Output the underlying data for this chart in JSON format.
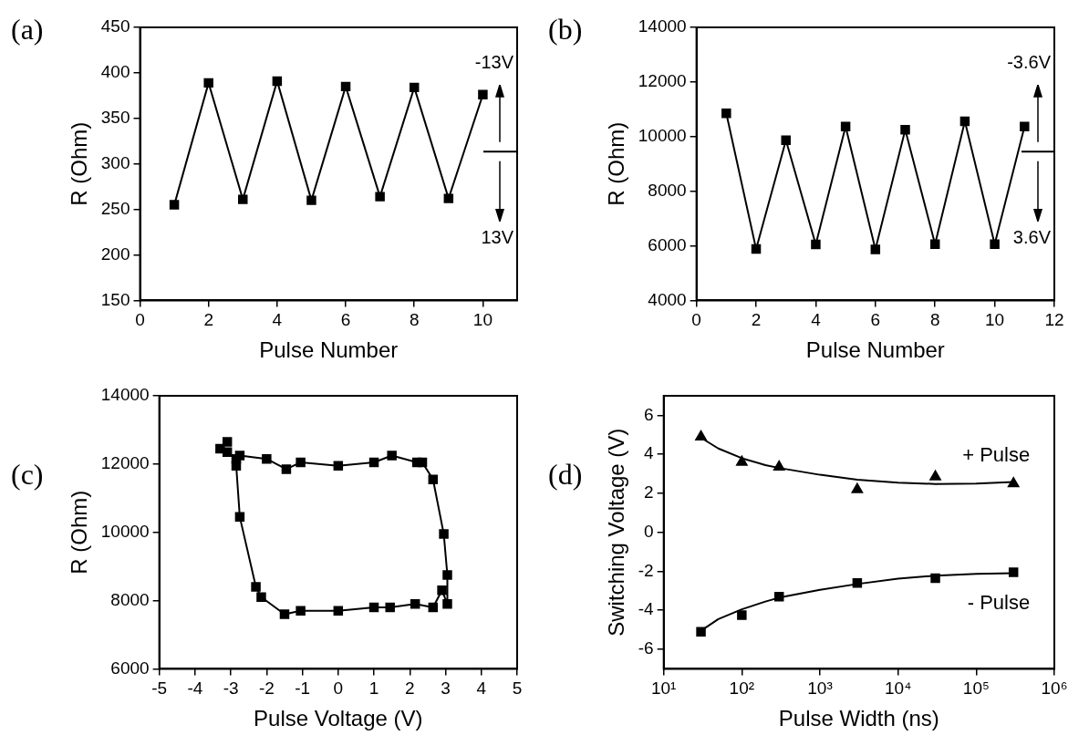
{
  "chart_data": [
    {
      "type": "line",
      "title": "(a)",
      "xlabel": "Pulse Number",
      "ylabel": "R (Ohm)",
      "x": [
        1,
        2,
        3,
        4,
        5,
        6,
        7,
        8,
        9,
        10
      ],
      "marker": "square",
      "series": [
        {
          "color": "#000000",
          "values": [
            255,
            389,
            261,
            391,
            260,
            385,
            264,
            384,
            262,
            376
          ]
        }
      ],
      "xlim": [
        0,
        11
      ],
      "xticks": [
        0,
        2,
        4,
        6,
        8,
        10
      ],
      "ylim": [
        150,
        450
      ],
      "yticks": [
        150,
        200,
        250,
        300,
        350,
        400,
        450
      ],
      "annotations": [
        "-13V",
        "13V"
      ]
    },
    {
      "type": "line",
      "title": "(b)",
      "xlabel": "Pulse Number",
      "ylabel": "R (Ohm)",
      "x": [
        1,
        2,
        3,
        4,
        5,
        6,
        7,
        8,
        9,
        10,
        11
      ],
      "marker": "square",
      "series": [
        {
          "color": "#000000",
          "values": [
            10850,
            5880,
            9870,
            6050,
            10370,
            5870,
            10250,
            6060,
            10560,
            6060,
            10370
          ]
        }
      ],
      "xlim": [
        0,
        12
      ],
      "xticks": [
        0,
        2,
        4,
        6,
        8,
        10,
        12
      ],
      "ylim": [
        4000,
        14000
      ],
      "yticks": [
        4000,
        6000,
        8000,
        10000,
        12000,
        14000
      ],
      "annotations": [
        "-3.6V",
        "3.6V"
      ]
    },
    {
      "type": "line",
      "title": "(c)",
      "xlabel": "Pulse Voltage (V)",
      "ylabel": "R (Ohm)",
      "marker": "square",
      "series": [
        {
          "color": "#000000",
          "x": [
            -2.75,
            -2.0,
            -1.45,
            -1.05,
            0.0,
            1.0,
            1.5,
            2.2,
            2.35,
            2.65,
            2.95,
            3.05,
            3.05,
            2.9,
            2.65,
            2.15,
            1.45,
            1.0,
            0.0,
            -1.05,
            -1.5,
            -2.15,
            -2.3,
            -2.75,
            -2.85,
            -2.85,
            -3.1,
            -3.3,
            -3.1
          ],
          "values": [
            12250,
            12150,
            11850,
            12050,
            11950,
            12050,
            12250,
            12050,
            12050,
            11550,
            9950,
            8750,
            7900,
            8300,
            7800,
            7900,
            7800,
            7800,
            7700,
            7700,
            7600,
            8100,
            8400,
            10450,
            11950,
            12150,
            12350,
            12450,
            12650
          ]
        }
      ],
      "xlim": [
        -5,
        5
      ],
      "xticks": [
        -5,
        -4,
        -3,
        -2,
        -1,
        0,
        1,
        2,
        3,
        4,
        5
      ],
      "ylim": [
        6000,
        14000
      ],
      "yticks": [
        6000,
        8000,
        10000,
        12000,
        14000
      ]
    },
    {
      "type": "scatter",
      "title": "(d)",
      "xlabel": "Pulse Width (ns)",
      "ylabel": "Switching Voltage (V)",
      "log": "x",
      "series": [
        {
          "name": "+ Pulse",
          "marker": "triangle",
          "color": "#000000",
          "x": [
            30,
            100,
            300,
            3000,
            30000,
            300000
          ],
          "values": [
            4.9,
            3.6,
            3.35,
            2.2,
            2.85,
            2.5
          ]
        },
        {
          "name": "- Pulse",
          "marker": "square",
          "color": "#000000",
          "x": [
            30,
            100,
            300,
            3000,
            30000,
            300000
          ],
          "values": [
            -5.1,
            -4.25,
            -3.3,
            -2.6,
            -2.35,
            -2.05
          ]
        },
        {
          "type": "line",
          "marker": "none",
          "color": "#000000",
          "x": [
            30,
            50,
            100,
            200,
            300,
            1000,
            3000,
            10000,
            30000,
            100000,
            300000
          ],
          "values": [
            4.85,
            4.3,
            3.8,
            3.45,
            3.3,
            2.95,
            2.7,
            2.55,
            2.48,
            2.5,
            2.58
          ]
        },
        {
          "type": "line",
          "marker": "none",
          "color": "#000000",
          "x": [
            30,
            50,
            100,
            200,
            300,
            1000,
            3000,
            10000,
            30000,
            100000,
            300000
          ],
          "values": [
            -5.05,
            -4.45,
            -3.95,
            -3.55,
            -3.35,
            -2.95,
            -2.65,
            -2.38,
            -2.22,
            -2.13,
            -2.1
          ]
        }
      ],
      "xlim": [
        10,
        1000000
      ],
      "xticks": [
        {
          "value": 10,
          "label": "10¹"
        },
        {
          "value": 100,
          "label": "10²"
        },
        {
          "value": 1000,
          "label": "10³"
        },
        {
          "value": 10000,
          "label": "10⁴"
        },
        {
          "value": 100000,
          "label": "10⁵"
        },
        {
          "value": 1000000,
          "label": "10⁶"
        }
      ],
      "ylim": [
        -7,
        7
      ],
      "yticks": [
        -6,
        -4,
        -2,
        0,
        2,
        4,
        6
      ]
    }
  ]
}
